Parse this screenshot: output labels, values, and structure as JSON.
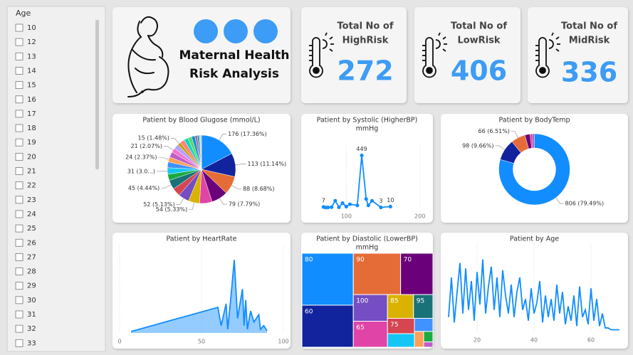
{
  "slicer": {
    "title": "Age",
    "items": [
      "10",
      "12",
      "13",
      "14",
      "15",
      "16",
      "17",
      "18",
      "19",
      "20",
      "21",
      "22",
      "23",
      "24",
      "25",
      "26",
      "27",
      "28",
      "29",
      "30",
      "31",
      "32",
      "33"
    ]
  },
  "header": {
    "title_lines": [
      "Maternal Health",
      "Risk Analysis"
    ]
  },
  "kpis": [
    {
      "label_lines": [
        "Total No of",
        "HighRisk"
      ],
      "value": 272
    },
    {
      "label_lines": [
        "Total No of",
        "LowRisk"
      ],
      "value": 406
    },
    {
      "label_lines": [
        "Total No of",
        "MidRisk"
      ],
      "value": 336
    }
  ],
  "chart_data": [
    {
      "type": "pie",
      "title": [
        "Patient by Blood Glugose (mmol/L)"
      ],
      "values": [
        176,
        113,
        88,
        79,
        60,
        54,
        52,
        40,
        45,
        30,
        31,
        28,
        24,
        26,
        21,
        24,
        15,
        22,
        20,
        18,
        16,
        12,
        10,
        6,
        4
      ],
      "value_labels": [
        "176 (17.36%)",
        "113 (11.14%)",
        "88 (8.68%)",
        "79 (7.79%)",
        null,
        "54 (5.33%)",
        "52 (5.13%)",
        null,
        "45 (4.44%)",
        null,
        "31 (3.0...)",
        null,
        "24 (2.37%)",
        null,
        "21 (2.07%)",
        null,
        "15 (1.48%)",
        null,
        null,
        null,
        null,
        null,
        null,
        null,
        null
      ],
      "colors": [
        "#118dff",
        "#12239e",
        "#e66c37",
        "#6b007b",
        "#e044a7",
        "#d9b300",
        "#744ec2",
        "#d64550",
        "#197278",
        "#1aab40",
        "#15c6f4",
        "#4092ff",
        "#ffa058",
        "#be5dc9",
        "#f472d0",
        "#b5a1ff",
        "#c4a200",
        "#ff8080",
        "#00dbbc",
        "#5bd667",
        "#0091d5",
        "#a66999",
        "#3599b8",
        "#dfbfbf",
        "#4ac5bb"
      ]
    },
    {
      "type": "line",
      "title": [
        "Patient by Systolic (HigherBP)",
        "mmHg"
      ],
      "color": "#118dff",
      "x": [
        69,
        72,
        75,
        80,
        85,
        90,
        95,
        100,
        105,
        115,
        121,
        127,
        130,
        135,
        147,
        160
      ],
      "values": [
        7,
        2,
        3,
        5,
        60,
        4,
        40,
        10,
        30,
        20,
        449,
        75,
        20,
        60,
        3,
        10
      ],
      "value_labels": [
        "7",
        null,
        null,
        null,
        null,
        null,
        null,
        null,
        null,
        null,
        "449",
        null,
        null,
        null,
        "3",
        "10"
      ],
      "markers": true,
      "xlim": [
        60,
        210
      ],
      "xticks": [
        100,
        200
      ],
      "ylim": [
        0,
        470
      ],
      "grid": true
    },
    {
      "type": "donut",
      "title": [
        "Patient by BodyTemp"
      ],
      "values": [
        806,
        98,
        66,
        24,
        12,
        8
      ],
      "value_labels": [
        "806 (79.49%)",
        "98 (9.66%)",
        "66 (6.51%)",
        null,
        null,
        null
      ],
      "colors": [
        "#118dff",
        "#12239e",
        "#e66c37",
        "#6b007b",
        "#e044a7",
        "#744ec2"
      ]
    },
    {
      "type": "area",
      "title": [
        "Patient by HeartRate"
      ],
      "color": "#118dff",
      "x": [
        7,
        60,
        62,
        65,
        66,
        68,
        70,
        72,
        75,
        76,
        77,
        78,
        80,
        82,
        85,
        86,
        88,
        90
      ],
      "values": [
        2,
        35,
        10,
        40,
        5,
        50,
        100,
        20,
        60,
        10,
        45,
        5,
        30,
        15,
        25,
        5,
        10,
        3
      ],
      "xlim": [
        0,
        100
      ],
      "xticks": [
        0,
        50,
        100
      ],
      "ylim": [
        0,
        110
      ],
      "grid": true
    },
    {
      "type": "treemap",
      "title": [
        "Patient by Diastolic (LowerBP)",
        "mmHg"
      ],
      "categories": [
        "80",
        "60",
        "90",
        "70",
        "100",
        "65",
        "85",
        "95",
        "75",
        null,
        null,
        null,
        null,
        null
      ],
      "values": [
        220,
        178,
        161,
        110,
        75,
        73,
        51,
        38,
        34,
        30,
        20,
        12,
        8,
        4
      ],
      "colors": [
        "#118dff",
        "#12239e",
        "#e66c37",
        "#6b007b",
        "#744ec2",
        "#e044a7",
        "#d9b300",
        "#197278",
        "#d64550",
        "#15c6f4",
        "#4092ff",
        "#ffa058",
        "#1aab40",
        "#be5dc9"
      ]
    },
    {
      "type": "line",
      "title": [
        "Patient by Age"
      ],
      "color": "#118dff",
      "x": [
        10,
        11,
        12,
        13,
        14,
        15,
        16,
        17,
        18,
        19,
        20,
        21,
        22,
        23,
        24,
        25,
        26,
        27,
        28,
        29,
        30,
        31,
        32,
        33,
        34,
        35,
        36,
        37,
        38,
        39,
        40,
        41,
        42,
        43,
        44,
        45,
        46,
        47,
        48,
        49,
        50,
        51,
        52,
        53,
        54,
        55,
        56,
        57,
        58,
        59,
        60,
        61,
        62,
        63,
        64,
        65,
        66,
        67,
        68,
        69,
        70
      ],
      "values": [
        8,
        30,
        5,
        22,
        38,
        10,
        35,
        12,
        28,
        6,
        33,
        15,
        40,
        10,
        25,
        36,
        12,
        30,
        8,
        34,
        20,
        10,
        26,
        8,
        22,
        30,
        12,
        18,
        6,
        24,
        10,
        16,
        28,
        5,
        20,
        8,
        18,
        6,
        26,
        10,
        22,
        4,
        14,
        6,
        20,
        3,
        25,
        8,
        12,
        4,
        24,
        6,
        18,
        3,
        10,
        2,
        2,
        1,
        1,
        1,
        1
      ],
      "xlim": [
        8,
        72
      ],
      "xticks": [
        20,
        40,
        60
      ],
      "ylim": [
        0,
        45
      ],
      "grid": true
    }
  ]
}
